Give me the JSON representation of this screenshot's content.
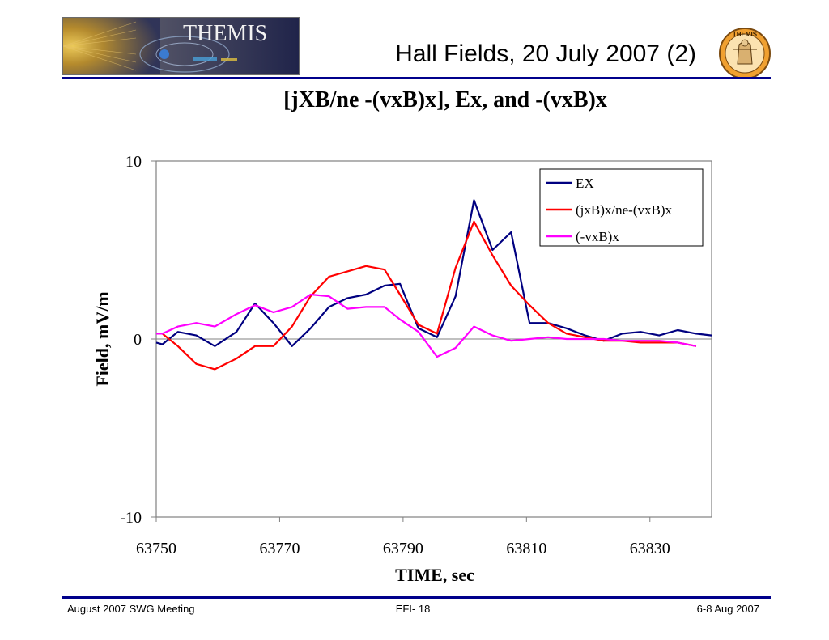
{
  "header": {
    "logo_text": "THEMIS",
    "slide_title": "Hall Fields, 20 July 2007 (2)",
    "seal_text": "THEMIS"
  },
  "footer": {
    "left": "August 2007 SWG Meeting",
    "center": "EFI- 18",
    "right": "6-8 Aug 2007"
  },
  "colors": {
    "rule": "#00008b",
    "EX": "#000080",
    "jxB": "#ff0000",
    "vxB": "#ff00ff"
  },
  "chart_data": {
    "type": "line",
    "title": "[jXB/ne -(vxB)x], Ex, and -(vxB)x",
    "xlabel": "TIME, sec",
    "ylabel": "Field, mV/m",
    "xlim": [
      63750,
      63840
    ],
    "ylim": [
      -10,
      10
    ],
    "xticks": [
      "63750",
      "63770",
      "63790",
      "63810",
      "63830"
    ],
    "yticks": [
      "10",
      "0",
      "-10"
    ],
    "grid": false,
    "legend_position": "top-right",
    "series": [
      {
        "name": "EX",
        "color": "#000080",
        "x": [
          63750,
          63751,
          63753.5,
          63756.5,
          63759.5,
          63763,
          63766,
          63769,
          63772,
          63775,
          63778,
          63781,
          63784,
          63787,
          63789.5,
          63792.5,
          63795.5,
          63798.5,
          63801.5,
          63804.5,
          63807.5,
          63810.5,
          63813.5,
          63816.5,
          63819.5,
          63822.5,
          63825.5,
          63828.5,
          63831.5,
          63834.5,
          63837.5,
          63840
        ],
        "y": [
          -0.2,
          -0.3,
          0.4,
          0.2,
          -0.4,
          0.4,
          2.0,
          0.9,
          -0.4,
          0.6,
          1.8,
          2.3,
          2.5,
          3.0,
          3.1,
          0.6,
          0.1,
          2.4,
          7.8,
          5.0,
          6.0,
          0.9,
          0.9,
          0.6,
          0.2,
          -0.1,
          0.3,
          0.4,
          0.2,
          0.5,
          0.3,
          0.2
        ]
      },
      {
        "name": "(jxB)x/ne-(vxB)x",
        "color": "#ff0000",
        "x": [
          63750,
          63751,
          63753.5,
          63756.5,
          63759.5,
          63763,
          63766,
          63769,
          63772,
          63775,
          63778,
          63781,
          63784,
          63787,
          63789.5,
          63792.5,
          63795.5,
          63798.5,
          63801.5,
          63804.5,
          63807.5,
          63810.5,
          63813.5,
          63816.5,
          63819.5,
          63822.5,
          63825.5,
          63828.5,
          63831.5,
          63834.5,
          63837.5
        ],
        "y": [
          0.3,
          0.3,
          -0.4,
          -1.4,
          -1.7,
          -1.1,
          -0.4,
          -0.4,
          0.7,
          2.4,
          3.5,
          3.8,
          4.1,
          3.9,
          2.5,
          0.8,
          0.3,
          4.0,
          6.6,
          4.7,
          3.0,
          1.9,
          0.9,
          0.3,
          0.1,
          -0.1,
          -0.1,
          -0.2,
          -0.2,
          -0.2,
          -0.4
        ]
      },
      {
        "name": "(-vxB)x",
        "color": "#ff00ff",
        "x": [
          63750,
          63751,
          63753.5,
          63756.5,
          63759.5,
          63763,
          63766,
          63769,
          63772,
          63775,
          63778,
          63781,
          63784,
          63787,
          63789.5,
          63792.5,
          63795.5,
          63798.5,
          63801.5,
          63804.5,
          63807.5,
          63810.5,
          63813.5,
          63816.5,
          63819.5,
          63822.5,
          63825.5,
          63828.5,
          63831.5,
          63834.5,
          63837.5
        ],
        "y": [
          0.3,
          0.3,
          0.7,
          0.9,
          0.7,
          1.4,
          1.9,
          1.5,
          1.8,
          2.5,
          2.4,
          1.7,
          1.8,
          1.8,
          1.1,
          0.4,
          -1.0,
          -0.5,
          0.7,
          0.2,
          -0.1,
          0.0,
          0.1,
          0.0,
          0.0,
          0.0,
          -0.1,
          -0.1,
          -0.1,
          -0.2,
          -0.4
        ]
      }
    ]
  }
}
